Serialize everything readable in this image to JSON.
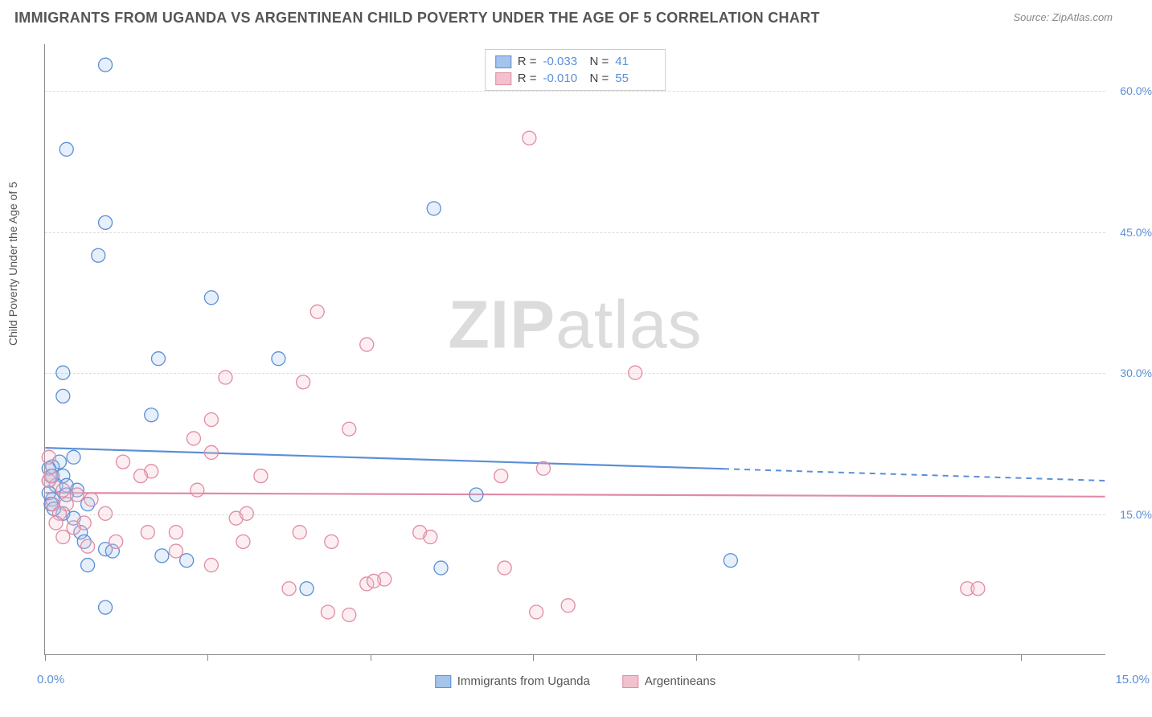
{
  "title": "IMMIGRANTS FROM UGANDA VS ARGENTINEAN CHILD POVERTY UNDER THE AGE OF 5 CORRELATION CHART",
  "source": "Source: ZipAtlas.com",
  "watermark": {
    "bold": "ZIP",
    "rest": "atlas"
  },
  "chart": {
    "type": "scatter",
    "background_color": "#ffffff",
    "grid_color": "#dddddd",
    "axis_color": "#888888",
    "y_label": "Child Poverty Under the Age of 5",
    "y_label_fontsize": 14,
    "xlim": [
      0.0,
      15.0
    ],
    "ylim": [
      0.0,
      65.0
    ],
    "y_ticks": [
      15.0,
      30.0,
      45.0,
      60.0
    ],
    "y_tick_labels": [
      "15.0%",
      "30.0%",
      "45.0%",
      "60.0%"
    ],
    "x_tick_positions": [
      0.0,
      2.3,
      4.6,
      6.9,
      9.2,
      11.5,
      13.8
    ],
    "x_axis_label_left": "0.0%",
    "x_axis_label_right": "15.0%",
    "tick_label_color": "#5b8fd6",
    "marker_radius": 8.5,
    "marker_stroke_width": 1.3,
    "marker_fill_opacity": 0.28,
    "series": [
      {
        "name": "Immigrants from Uganda",
        "color_fill": "#a4c4ec",
        "color_stroke": "#5b8fd6",
        "legend_stats": {
          "R": "-0.033",
          "N": "41"
        },
        "regression": {
          "y_at_x0": 22.0,
          "y_at_xmax": 18.5,
          "solid_until_x": 9.6
        },
        "points": [
          [
            0.85,
            62.8
          ],
          [
            0.3,
            53.8
          ],
          [
            0.85,
            46.0
          ],
          [
            0.75,
            42.5
          ],
          [
            2.35,
            38.0
          ],
          [
            5.5,
            47.5
          ],
          [
            1.6,
            31.5
          ],
          [
            3.3,
            31.5
          ],
          [
            0.25,
            30.0
          ],
          [
            0.25,
            27.5
          ],
          [
            1.5,
            25.5
          ],
          [
            0.4,
            21.0
          ],
          [
            0.2,
            20.5
          ],
          [
            0.1,
            20.0
          ],
          [
            0.05,
            19.8
          ],
          [
            0.1,
            19.0
          ],
          [
            0.25,
            19.0
          ],
          [
            0.15,
            18.0
          ],
          [
            0.3,
            18.0
          ],
          [
            0.45,
            17.5
          ],
          [
            0.3,
            17.0
          ],
          [
            0.1,
            16.5
          ],
          [
            0.05,
            17.2
          ],
          [
            0.6,
            16.0
          ],
          [
            0.25,
            15.0
          ],
          [
            6.1,
            17.0
          ],
          [
            0.5,
            13.0
          ],
          [
            0.85,
            11.2
          ],
          [
            0.95,
            11.0
          ],
          [
            1.65,
            10.5
          ],
          [
            0.6,
            9.5
          ],
          [
            2.0,
            10.0
          ],
          [
            5.6,
            9.2
          ],
          [
            3.7,
            7.0
          ],
          [
            0.85,
            5.0
          ],
          [
            9.7,
            10.0
          ],
          [
            0.08,
            16.0
          ],
          [
            0.12,
            15.5
          ],
          [
            0.4,
            14.5
          ],
          [
            0.05,
            18.5
          ],
          [
            0.55,
            12.0
          ]
        ]
      },
      {
        "name": "Argentineans",
        "color_fill": "#f3c1ce",
        "color_stroke": "#e08ba4",
        "legend_stats": {
          "R": "-0.010",
          "N": "55"
        },
        "regression": {
          "y_at_x0": 17.2,
          "y_at_xmax": 16.8,
          "solid_until_x": 15.0
        },
        "points": [
          [
            6.85,
            55.0
          ],
          [
            3.85,
            36.5
          ],
          [
            4.55,
            33.0
          ],
          [
            2.55,
            29.5
          ],
          [
            3.65,
            29.0
          ],
          [
            8.35,
            30.0
          ],
          [
            2.35,
            25.0
          ],
          [
            2.1,
            23.0
          ],
          [
            4.3,
            24.0
          ],
          [
            2.35,
            21.5
          ],
          [
            1.1,
            20.5
          ],
          [
            1.5,
            19.5
          ],
          [
            1.35,
            19.0
          ],
          [
            0.05,
            18.5
          ],
          [
            0.25,
            17.5
          ],
          [
            0.45,
            17.0
          ],
          [
            0.65,
            16.5
          ],
          [
            0.3,
            16.0
          ],
          [
            0.1,
            16.0
          ],
          [
            0.2,
            15.0
          ],
          [
            0.85,
            15.0
          ],
          [
            1.45,
            13.0
          ],
          [
            1.85,
            13.0
          ],
          [
            2.7,
            14.5
          ],
          [
            2.85,
            15.0
          ],
          [
            2.8,
            12.0
          ],
          [
            3.6,
            13.0
          ],
          [
            4.05,
            12.0
          ],
          [
            3.45,
            7.0
          ],
          [
            4.55,
            7.5
          ],
          [
            4.8,
            8.0
          ],
          [
            4.65,
            7.8
          ],
          [
            5.3,
            13.0
          ],
          [
            5.45,
            12.5
          ],
          [
            6.5,
            9.2
          ],
          [
            6.45,
            19.0
          ],
          [
            7.05,
            19.8
          ],
          [
            6.95,
            4.5
          ],
          [
            7.4,
            5.2
          ],
          [
            13.05,
            7.0
          ],
          [
            13.2,
            7.0
          ],
          [
            0.55,
            14.0
          ],
          [
            1.0,
            12.0
          ],
          [
            1.85,
            11.0
          ],
          [
            0.25,
            12.5
          ],
          [
            0.4,
            13.5
          ],
          [
            0.15,
            14.0
          ],
          [
            0.6,
            11.5
          ],
          [
            2.15,
            17.5
          ],
          [
            3.05,
            19.0
          ],
          [
            4.0,
            4.5
          ],
          [
            4.3,
            4.2
          ],
          [
            2.35,
            9.5
          ],
          [
            0.05,
            21.0
          ],
          [
            0.08,
            19.0
          ]
        ]
      }
    ]
  },
  "legend_bottom": [
    {
      "label": "Immigrants from Uganda",
      "fill": "#a4c4ec",
      "stroke": "#5b8fd6"
    },
    {
      "label": "Argentineans",
      "fill": "#f3c1ce",
      "stroke": "#e08ba4"
    }
  ]
}
